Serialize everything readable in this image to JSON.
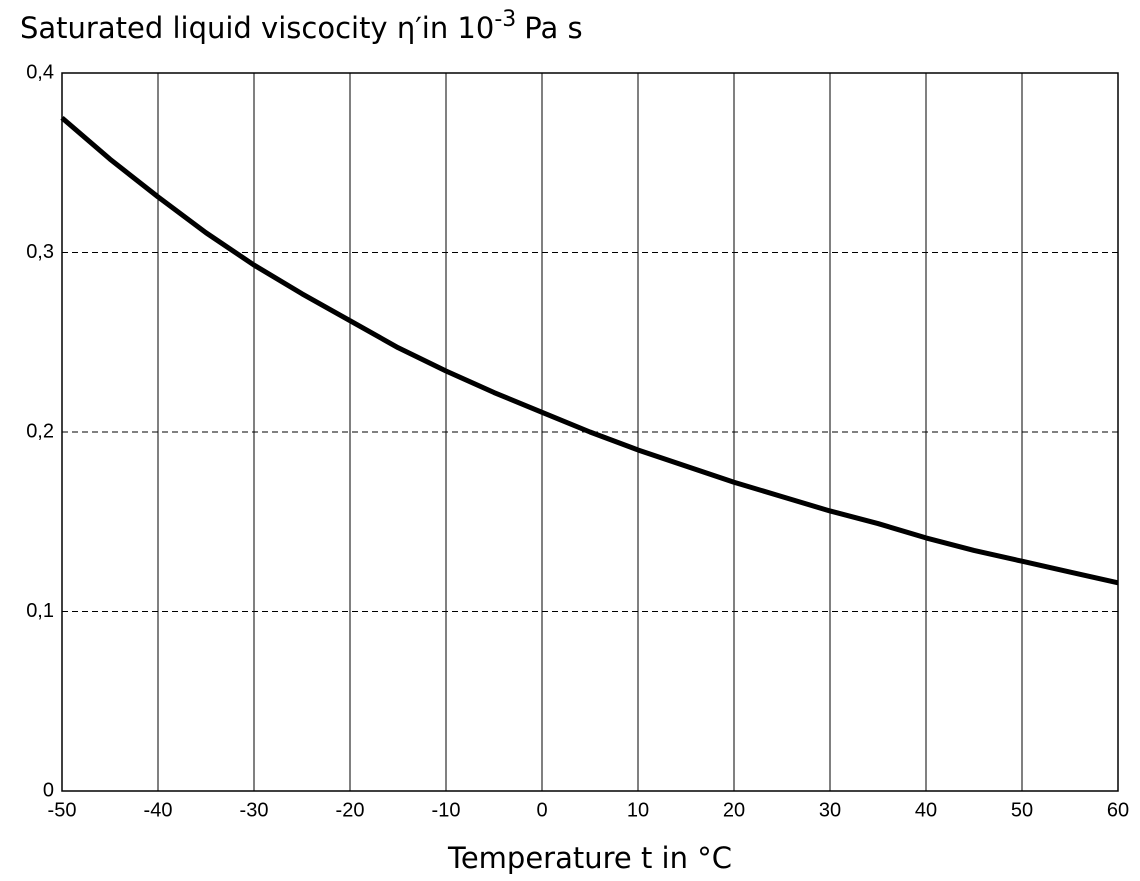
{
  "chart_data": {
    "type": "line",
    "title": "Saturated liquid viscocity η′in 10",
    "title_exponent": "-3",
    "title_unit": "Pa s",
    "x_label": "Temperature t in °C",
    "x": [
      -50,
      -45,
      -40,
      -35,
      -30,
      -25,
      -20,
      -15,
      -10,
      -5,
      0,
      5,
      10,
      15,
      20,
      25,
      30,
      35,
      40,
      45,
      50,
      55,
      60
    ],
    "series": [
      {
        "name": "η′",
        "color": "#000000",
        "values": [
          0.375,
          0.352,
          0.331,
          0.311,
          0.293,
          0.277,
          0.262,
          0.247,
          0.234,
          0.222,
          0.211,
          0.2,
          0.19,
          0.181,
          0.172,
          0.164,
          0.156,
          0.149,
          0.141,
          0.134,
          0.128,
          0.122,
          0.116
        ]
      }
    ],
    "xlim": [
      -50,
      60
    ],
    "xticks": [
      -50,
      -40,
      -30,
      -20,
      -10,
      0,
      10,
      20,
      30,
      40,
      50,
      60
    ],
    "ylim": [
      0,
      0.4
    ],
    "yticks": [
      0,
      {
        "value": 0.1,
        "label": "0,1"
      },
      {
        "value": 0.2,
        "label": "0,2"
      },
      {
        "value": 0.3,
        "label": "0,3"
      },
      {
        "value": 0.4,
        "label": "0,4"
      }
    ],
    "grid": true
  }
}
